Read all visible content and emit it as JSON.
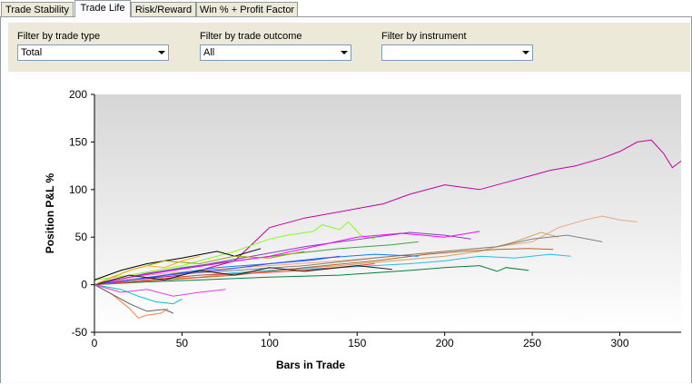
{
  "tabs": [
    {
      "label": "Trade Stability",
      "active": false
    },
    {
      "label": "Trade Life",
      "active": true
    },
    {
      "label": "Risk/Reward",
      "active": false
    },
    {
      "label": "Win % + Profit Factor",
      "active": false
    }
  ],
  "filters": {
    "trade_type": {
      "label": "Filter by trade type",
      "value": "Total"
    },
    "trade_outcome": {
      "label": "Filter by trade outcome",
      "value": "All"
    },
    "instrument": {
      "label": "Filter by instrument",
      "value": ""
    }
  },
  "chart_data": {
    "type": "line",
    "title": "",
    "xlabel": "Bars in Trade",
    "ylabel": "Position P&L %",
    "xlim": [
      0,
      335
    ],
    "ylim": [
      -50,
      200
    ],
    "xticks": [
      0,
      50,
      100,
      150,
      200,
      250,
      300
    ],
    "yticks": [
      -50,
      0,
      50,
      100,
      150,
      200
    ],
    "grid": false,
    "legend": "none",
    "background_gradient": [
      "#d6d6d6",
      "#ffffff"
    ],
    "series": [
      {
        "color": "#c000a0",
        "points": [
          [
            0,
            0
          ],
          [
            20,
            5
          ],
          [
            50,
            10
          ],
          [
            80,
            25
          ],
          [
            100,
            60
          ],
          [
            120,
            70
          ],
          [
            150,
            80
          ],
          [
            165,
            85
          ],
          [
            180,
            95
          ],
          [
            200,
            105
          ],
          [
            220,
            100
          ],
          [
            240,
            110
          ],
          [
            250,
            115
          ],
          [
            260,
            120
          ],
          [
            275,
            125
          ],
          [
            290,
            133
          ],
          [
            300,
            140
          ],
          [
            310,
            150
          ],
          [
            318,
            152
          ],
          [
            325,
            138
          ],
          [
            330,
            123
          ],
          [
            335,
            130
          ]
        ]
      },
      {
        "color": "#e8a878",
        "points": [
          [
            0,
            0
          ],
          [
            30,
            10
          ],
          [
            60,
            15
          ],
          [
            100,
            20
          ],
          [
            140,
            25
          ],
          [
            170,
            30
          ],
          [
            200,
            35
          ],
          [
            230,
            40
          ],
          [
            250,
            45
          ],
          [
            265,
            60
          ],
          [
            280,
            68
          ],
          [
            290,
            72
          ],
          [
            300,
            68
          ],
          [
            310,
            66
          ]
        ]
      },
      {
        "color": "#80ff20",
        "points": [
          [
            0,
            5
          ],
          [
            20,
            10
          ],
          [
            50,
            20
          ],
          [
            80,
            35
          ],
          [
            100,
            48
          ],
          [
            110,
            52
          ],
          [
            125,
            56
          ],
          [
            130,
            63
          ],
          [
            140,
            58
          ],
          [
            145,
            66
          ],
          [
            152,
            52
          ],
          [
            160,
            48
          ]
        ]
      },
      {
        "color": "#d0a060",
        "points": [
          [
            0,
            0
          ],
          [
            30,
            5
          ],
          [
            60,
            8
          ],
          [
            100,
            15
          ],
          [
            140,
            20
          ],
          [
            170,
            25
          ],
          [
            200,
            30
          ],
          [
            220,
            35
          ],
          [
            240,
            45
          ],
          [
            255,
            55
          ],
          [
            265,
            50
          ]
        ]
      },
      {
        "color": "#808080",
        "points": [
          [
            0,
            0
          ],
          [
            40,
            10
          ],
          [
            80,
            15
          ],
          [
            120,
            20
          ],
          [
            160,
            28
          ],
          [
            200,
            35
          ],
          [
            230,
            40
          ],
          [
            250,
            48
          ],
          [
            270,
            52
          ],
          [
            290,
            45
          ]
        ]
      },
      {
        "color": "#20c0e0",
        "points": [
          [
            0,
            0
          ],
          [
            30,
            5
          ],
          [
            60,
            10
          ],
          [
            100,
            15
          ],
          [
            140,
            18
          ],
          [
            180,
            22
          ],
          [
            200,
            25
          ],
          [
            220,
            30
          ],
          [
            240,
            28
          ],
          [
            260,
            32
          ],
          [
            272,
            30
          ]
        ]
      },
      {
        "color": "#008040",
        "points": [
          [
            0,
            0
          ],
          [
            30,
            3
          ],
          [
            60,
            5
          ],
          [
            100,
            8
          ],
          [
            140,
            10
          ],
          [
            180,
            15
          ],
          [
            200,
            18
          ],
          [
            220,
            20
          ],
          [
            230,
            14
          ],
          [
            235,
            18
          ],
          [
            248,
            15
          ]
        ]
      },
      {
        "color": "#c06020",
        "points": [
          [
            0,
            0
          ],
          [
            40,
            5
          ],
          [
            80,
            10
          ],
          [
            120,
            18
          ],
          [
            160,
            25
          ],
          [
            190,
            32
          ],
          [
            210,
            35
          ],
          [
            230,
            37
          ],
          [
            248,
            38
          ],
          [
            262,
            37
          ]
        ]
      },
      {
        "color": "#40a040",
        "points": [
          [
            0,
            0
          ],
          [
            25,
            10
          ],
          [
            50,
            18
          ],
          [
            80,
            25
          ],
          [
            110,
            32
          ],
          [
            140,
            38
          ],
          [
            170,
            42
          ],
          [
            185,
            45
          ]
        ]
      },
      {
        "color": "#8040c0",
        "points": [
          [
            0,
            0
          ],
          [
            30,
            12
          ],
          [
            60,
            20
          ],
          [
            90,
            30
          ],
          [
            120,
            40
          ],
          [
            140,
            45
          ],
          [
            160,
            50
          ],
          [
            180,
            55
          ],
          [
            200,
            52
          ],
          [
            215,
            48
          ]
        ]
      },
      {
        "color": "#ff00ff",
        "points": [
          [
            0,
            0
          ],
          [
            20,
            8
          ],
          [
            45,
            15
          ],
          [
            70,
            22
          ],
          [
            100,
            30
          ],
          [
            130,
            42
          ],
          [
            150,
            50
          ],
          [
            175,
            54
          ],
          [
            200,
            50
          ],
          [
            220,
            56
          ]
        ]
      },
      {
        "color": "#0080ff",
        "points": [
          [
            0,
            0
          ],
          [
            20,
            5
          ],
          [
            40,
            10
          ],
          [
            70,
            18
          ],
          [
            100,
            22
          ],
          [
            130,
            28
          ],
          [
            160,
            32
          ],
          [
            185,
            30
          ]
        ]
      },
      {
        "color": "#000000",
        "points": [
          [
            0,
            5
          ],
          [
            15,
            15
          ],
          [
            30,
            22
          ],
          [
            50,
            28
          ],
          [
            70,
            35
          ],
          [
            80,
            30
          ],
          [
            95,
            38
          ]
        ]
      },
      {
        "color": "#ff8040",
        "points": [
          [
            0,
            0
          ],
          [
            10,
            -10
          ],
          [
            20,
            -25
          ],
          [
            25,
            -35
          ],
          [
            30,
            -32
          ],
          [
            38,
            -30
          ],
          [
            42,
            -25
          ]
        ]
      },
      {
        "color": "#606060",
        "points": [
          [
            0,
            0
          ],
          [
            10,
            -10
          ],
          [
            20,
            -20
          ],
          [
            30,
            -28
          ],
          [
            40,
            -26
          ],
          [
            45,
            -30
          ]
        ]
      },
      {
        "color": "#00c0c0",
        "points": [
          [
            0,
            0
          ],
          [
            15,
            -5
          ],
          [
            25,
            -12
          ],
          [
            35,
            -18
          ],
          [
            45,
            -20
          ],
          [
            50,
            -15
          ]
        ]
      },
      {
        "color": "#a0a000",
        "points": [
          [
            0,
            0
          ],
          [
            20,
            15
          ],
          [
            40,
            25
          ],
          [
            60,
            22
          ],
          [
            80,
            30
          ],
          [
            100,
            28
          ],
          [
            120,
            35
          ]
        ]
      },
      {
        "color": "#ff4040",
        "points": [
          [
            0,
            0
          ],
          [
            30,
            5
          ],
          [
            60,
            10
          ],
          [
            90,
            12
          ],
          [
            120,
            15
          ],
          [
            150,
            20
          ],
          [
            160,
            22
          ]
        ]
      },
      {
        "color": "#4040ff",
        "points": [
          [
            0,
            0
          ],
          [
            25,
            6
          ],
          [
            50,
            12
          ],
          [
            75,
            16
          ],
          [
            100,
            22
          ],
          [
            125,
            26
          ],
          [
            140,
            30
          ]
        ]
      },
      {
        "color": "#202020",
        "points": [
          [
            0,
            0
          ],
          [
            20,
            10
          ],
          [
            40,
            5
          ],
          [
            60,
            15
          ],
          [
            80,
            10
          ],
          [
            100,
            18
          ],
          [
            120,
            14
          ],
          [
            150,
            20
          ],
          [
            170,
            16
          ]
        ]
      },
      {
        "color": "#ffb000",
        "points": [
          [
            0,
            0
          ],
          [
            10,
            8
          ],
          [
            20,
            15
          ],
          [
            30,
            20
          ],
          [
            40,
            18
          ],
          [
            50,
            25
          ],
          [
            60,
            30
          ]
        ]
      },
      {
        "color": "#e040e0",
        "points": [
          [
            0,
            0
          ],
          [
            15,
            -8
          ],
          [
            30,
            -5
          ],
          [
            45,
            -12
          ],
          [
            60,
            -8
          ],
          [
            75,
            -5
          ]
        ]
      }
    ]
  }
}
